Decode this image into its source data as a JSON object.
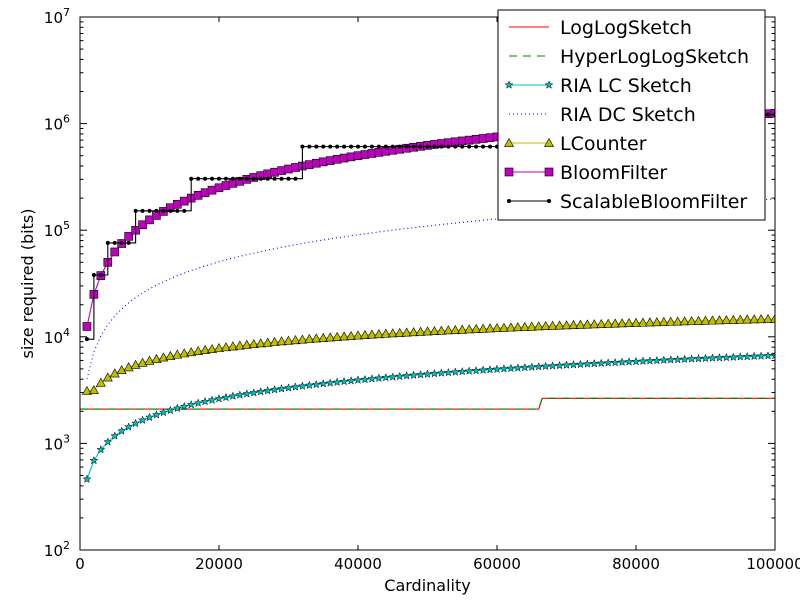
{
  "chart_data": {
    "type": "line",
    "title": "",
    "xlabel": "Cardinality",
    "ylabel": "size required (bits)",
    "xlim": [
      0,
      100000
    ],
    "ylim": [
      100,
      10000000
    ],
    "yscale": "log",
    "grid": false,
    "legend_position": "top-right",
    "x_ticks": [
      {
        "value": 0,
        "label": "0"
      },
      {
        "value": 20000,
        "label": "20000"
      },
      {
        "value": 40000,
        "label": "40000"
      },
      {
        "value": 60000,
        "label": "60000"
      },
      {
        "value": 80000,
        "label": "80000"
      },
      {
        "value": 100000,
        "label": "100000"
      }
    ],
    "y_ticks": [
      {
        "value": 100,
        "base": "10",
        "exp": "2"
      },
      {
        "value": 1000,
        "base": "10",
        "exp": "3"
      },
      {
        "value": 10000,
        "base": "10",
        "exp": "4"
      },
      {
        "value": 100000,
        "base": "10",
        "exp": "5"
      },
      {
        "value": 1000000,
        "base": "10",
        "exp": "6"
      },
      {
        "value": 10000000,
        "base": "10",
        "exp": "7"
      }
    ],
    "series": [
      {
        "name": "LogLogSketch",
        "color": "#ff0000",
        "style": "solid",
        "marker": "none",
        "points": [
          [
            0,
            2100
          ],
          [
            66000,
            2100
          ],
          [
            66500,
            2650
          ],
          [
            100000,
            2650
          ]
        ]
      },
      {
        "name": "HyperLogLogSketch",
        "color": "#008000",
        "style": "dashed",
        "marker": "none",
        "points": [
          [
            0,
            2100
          ],
          [
            66000,
            2100
          ],
          [
            66500,
            2650
          ],
          [
            100000,
            2650
          ]
        ]
      },
      {
        "name": "RIA LC Sketch",
        "color": "#00bfbf",
        "style": "solid",
        "marker": "star",
        "formula": {
          "a": 8.4,
          "b": 0.58,
          "min": 300,
          "max": 15000
        }
      },
      {
        "name": "RIA DC Sketch",
        "color": "#0000ff",
        "style": "dotted",
        "marker": "none",
        "formula": {
          "a": 11.88,
          "b": 0.8436,
          "min": 1500,
          "max": 300000
        }
      },
      {
        "name": "LCounter",
        "color": "#bfbf00",
        "style": "solid",
        "marker": "triangle",
        "formula": {
          "a": 158.4,
          "b": 0.3938,
          "min": 3100,
          "max": 21000
        }
      },
      {
        "name": "BloomFilter",
        "color": "#bf00bf",
        "style": "solid",
        "marker": "square",
        "formula": {
          "a": 12.5,
          "b": 1.0,
          "min": 6500,
          "max": 1250000
        }
      },
      {
        "name": "ScalableBloomFilter",
        "color": "#000000",
        "style": "solid",
        "marker": "dot",
        "step": {
          "start": 9500,
          "first_step_x": 1000,
          "levels": 8,
          "max": 1650000
        }
      }
    ]
  }
}
